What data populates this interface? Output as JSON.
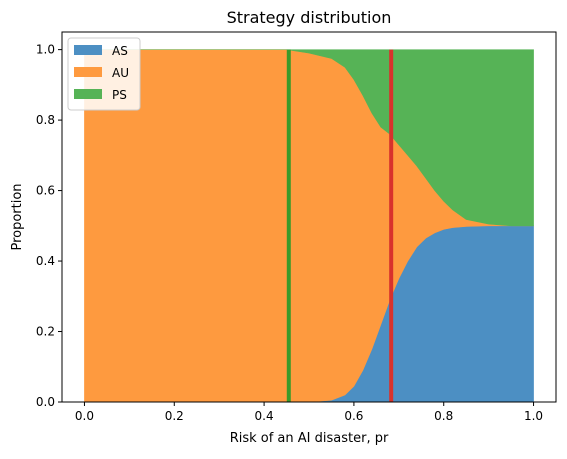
{
  "chart_data": {
    "type": "area",
    "stacked": true,
    "title": "Strategy distribution",
    "xlabel": "Risk of an AI disaster, pr",
    "ylabel": "Proportion",
    "xlim": [
      -0.05,
      1.05
    ],
    "ylim": [
      0,
      1.05
    ],
    "xticks": [
      0.0,
      0.2,
      0.4,
      0.6,
      0.8,
      1.0
    ],
    "xtick_labels": [
      "0.0",
      "0.2",
      "0.4",
      "0.6",
      "0.8",
      "1.0"
    ],
    "yticks": [
      0.0,
      0.2,
      0.4,
      0.6,
      0.8,
      1.0
    ],
    "ytick_labels": [
      "0.0",
      "0.2",
      "0.4",
      "0.6",
      "0.8",
      "1.0"
    ],
    "grid": false,
    "legend_position": "upper-left",
    "x": [
      0.0,
      0.45,
      0.5,
      0.55,
      0.58,
      0.6,
      0.62,
      0.64,
      0.66,
      0.68,
      0.7,
      0.72,
      0.74,
      0.76,
      0.78,
      0.8,
      0.82,
      0.85,
      0.9,
      0.95,
      1.0
    ],
    "series": [
      {
        "name": "AS",
        "color": "#4c8fc3",
        "values": [
          0.0,
          0.0,
          0.0,
          0.005,
          0.02,
          0.045,
          0.09,
          0.15,
          0.22,
          0.29,
          0.35,
          0.4,
          0.44,
          0.465,
          0.48,
          0.49,
          0.495,
          0.498,
          0.5,
          0.5,
          0.5
        ]
      },
      {
        "name": "AU",
        "color": "#fe9a3f",
        "values": [
          1.0,
          1.0,
          0.99,
          0.97,
          0.93,
          0.87,
          0.78,
          0.67,
          0.56,
          0.47,
          0.38,
          0.3,
          0.23,
          0.17,
          0.12,
          0.08,
          0.05,
          0.02,
          0.005,
          0.0,
          0.0
        ]
      },
      {
        "name": "PS",
        "color": "#56b356",
        "values": [
          0.0,
          0.0,
          0.01,
          0.025,
          0.05,
          0.085,
          0.13,
          0.18,
          0.22,
          0.24,
          0.27,
          0.3,
          0.33,
          0.365,
          0.4,
          0.43,
          0.455,
          0.482,
          0.495,
          0.5,
          0.5
        ]
      }
    ],
    "vertical_lines": [
      {
        "x": 0.455,
        "color": "#3a9a2a"
      },
      {
        "x": 0.683,
        "color": "#d8322c"
      }
    ]
  }
}
